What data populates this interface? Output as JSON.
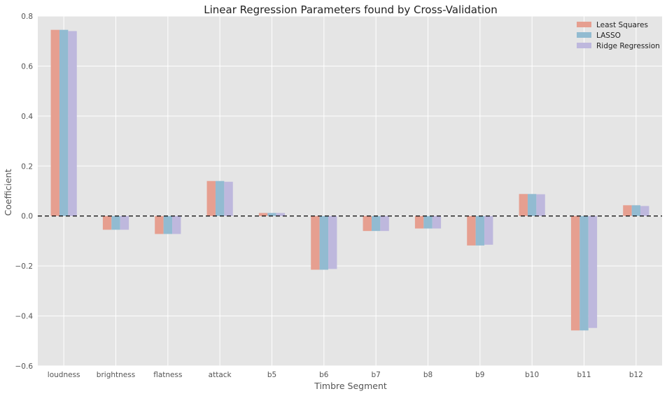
{
  "chart_data": {
    "type": "bar",
    "title": "Linear Regression Parameters found by Cross-Validation",
    "xlabel": "Timbre Segment",
    "ylabel": "Coefficient",
    "ylim": [
      -0.6,
      0.8
    ],
    "yticks": [
      -0.6,
      -0.4,
      -0.2,
      0.0,
      0.2,
      0.4,
      0.6,
      0.8
    ],
    "ytick_labels": [
      "−0.6",
      "−0.4",
      "−0.2",
      "0.0",
      "0.2",
      "0.4",
      "0.6",
      "0.8"
    ],
    "grid": true,
    "legend_position": "top-right",
    "zero_line": "dashed",
    "categories": [
      "loudness",
      "brightness",
      "flatness",
      "attack",
      "b5",
      "b6",
      "b7",
      "b8",
      "b9",
      "b10",
      "b11",
      "b12"
    ],
    "series": [
      {
        "name": "Least Squares",
        "color": "#E69F90",
        "values": [
          0.745,
          -0.055,
          -0.072,
          0.14,
          0.012,
          -0.215,
          -0.06,
          -0.05,
          -0.118,
          0.088,
          -0.458,
          0.043
        ]
      },
      {
        "name": "LASSO",
        "color": "#92BBD1",
        "values": [
          0.745,
          -0.055,
          -0.072,
          0.14,
          0.012,
          -0.215,
          -0.06,
          -0.05,
          -0.118,
          0.088,
          -0.458,
          0.043
        ]
      },
      {
        "name": "Ridge Regression",
        "color": "#BEB8DD",
        "values": [
          0.74,
          -0.055,
          -0.072,
          0.137,
          0.012,
          -0.212,
          -0.06,
          -0.05,
          -0.115,
          0.087,
          -0.448,
          0.04
        ]
      }
    ],
    "colors": {
      "plot_background": "#E5E5E5",
      "grid": "#FFFFFF",
      "text": "#555555",
      "title": "#222222"
    }
  }
}
